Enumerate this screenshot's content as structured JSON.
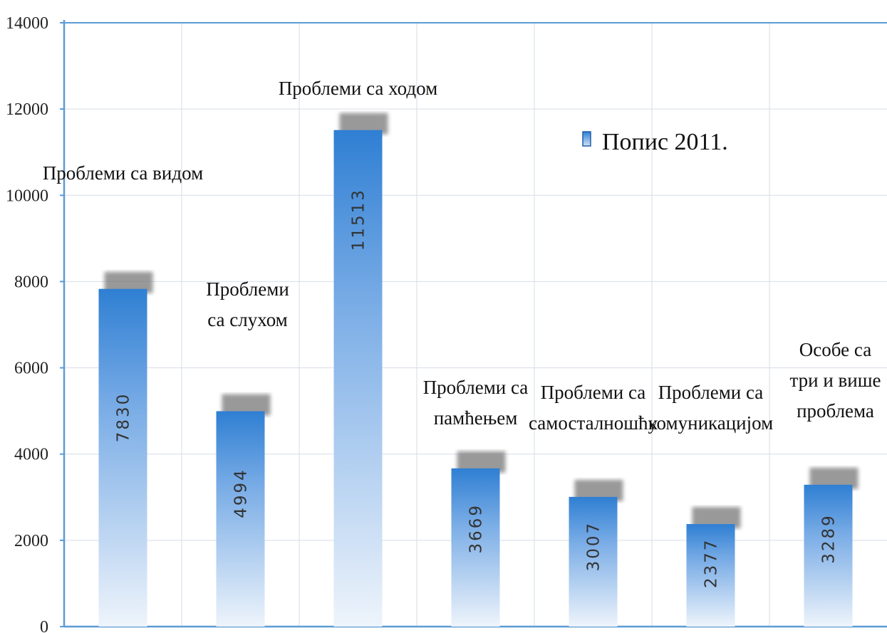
{
  "chart_data": {
    "type": "bar",
    "categories": [
      [
        "Проблеми са  видом"
      ],
      [
        "Проблеми",
        "са слухом"
      ],
      [
        "Проблеми са ходом"
      ],
      [
        "Проблеми са",
        "памћењем"
      ],
      [
        "Проблеми са",
        "самосталношћу"
      ],
      [
        "Проблеми са",
        "комуникацијом"
      ],
      [
        "Особе са",
        "три и више",
        "проблема"
      ]
    ],
    "series": [
      {
        "name": "Попис  2011.",
        "values": [
          7830,
          4994,
          11513,
          3669,
          3007,
          2377,
          3289
        ]
      }
    ],
    "ylim": [
      0,
      14000
    ],
    "yticks": [
      0,
      2000,
      4000,
      6000,
      8000,
      10000,
      12000,
      14000
    ],
    "grid": true,
    "legend_position": "top-right",
    "data_labels": [
      "7830",
      "4994",
      "11513",
      "3669",
      "3007",
      "2377",
      "3289"
    ],
    "colors": {
      "bar_top": "#2f7fd3",
      "bar_bottom": "#eef4fb",
      "bar_shadow": "#777777",
      "axis": "#5b9bd5",
      "grid": "#d6dde8"
    }
  }
}
